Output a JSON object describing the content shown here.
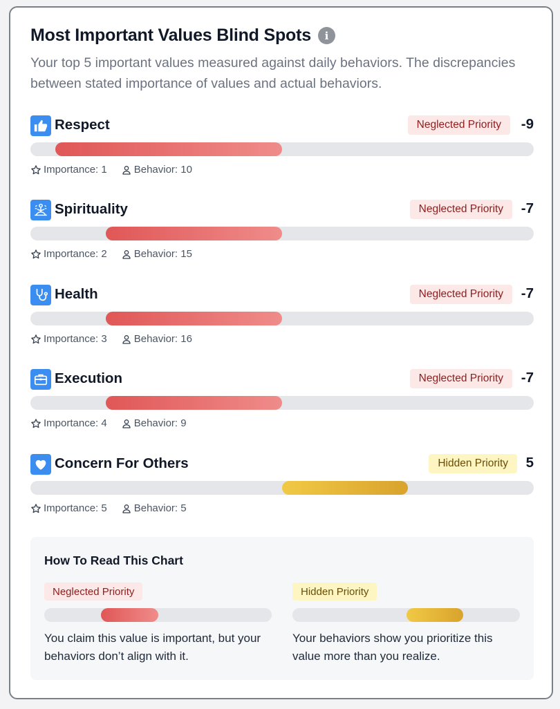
{
  "card": {
    "title": "Most Important Values Blind Spots",
    "subtitle": "Your top 5 important values measured against daily behaviors. The discrepancies between stated importance of values and actual behaviors."
  },
  "values": [
    {
      "name": "Respect",
      "icon": "thumbs-up-icon",
      "badge": "Neglected Priority",
      "kind": "neglected",
      "score": "-9",
      "importance": "Importance: 1",
      "behavior": "Behavior: 10",
      "bar_start": 0.05,
      "bar_end": 0.5
    },
    {
      "name": "Spirituality",
      "icon": "meditation-icon",
      "badge": "Neglected Priority",
      "kind": "neglected",
      "score": "-7",
      "importance": "Importance: 2",
      "behavior": "Behavior: 15",
      "bar_start": 0.15,
      "bar_end": 0.5
    },
    {
      "name": "Health",
      "icon": "stethoscope-icon",
      "badge": "Neglected Priority",
      "kind": "neglected",
      "score": "-7",
      "importance": "Importance: 3",
      "behavior": "Behavior: 16",
      "bar_start": 0.15,
      "bar_end": 0.5
    },
    {
      "name": "Execution",
      "icon": "briefcase-icon",
      "badge": "Neglected Priority",
      "kind": "neglected",
      "score": "-7",
      "importance": "Importance: 4",
      "behavior": "Behavior: 9",
      "bar_start": 0.15,
      "bar_end": 0.5
    },
    {
      "name": "Concern For Others",
      "icon": "heart-icon",
      "badge": "Hidden Priority",
      "kind": "hidden",
      "score": "5",
      "importance": "Importance: 5",
      "behavior": "Behavior: 5",
      "bar_start": 0.5,
      "bar_end": 0.75
    }
  ],
  "legend": {
    "title": "How To Read This Chart",
    "neglected": {
      "badge": "Neglected Priority",
      "description": "You claim this value is important, but your behaviors don’t align with it.",
      "bar_start": 0.25,
      "bar_end": 0.5
    },
    "hidden": {
      "badge": "Hidden Priority",
      "description": "Your behaviors show you prioritize this value more than you realize.",
      "bar_start": 0.5,
      "bar_end": 0.75
    }
  },
  "colors": {
    "icon_bg": "#3b8ef0",
    "neglected_bar": "#e05757",
    "hidden_bar": "#e0b336",
    "neglected_badge_bg": "#fde8e8",
    "hidden_badge_bg": "#fdf5c2"
  }
}
